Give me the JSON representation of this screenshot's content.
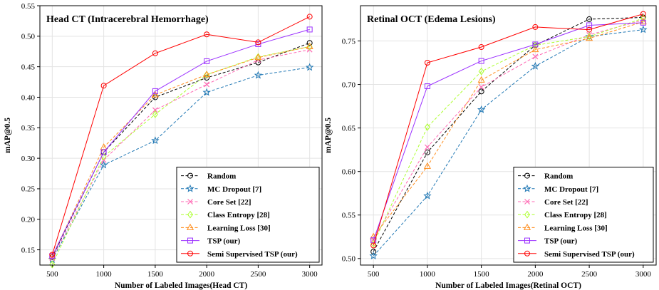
{
  "chart_data": [
    {
      "type": "line",
      "title": "Head CT (Intracerebral Hemorrhage)",
      "xlabel": "Number of Labeled Images(Head CT)",
      "ylabel": "mAP@0.5",
      "x": [
        500,
        1000,
        1500,
        2000,
        2500,
        3000
      ],
      "xlim": [
        380,
        3120
      ],
      "ylim": [
        0.125,
        0.55
      ],
      "yticks": [
        "0.15",
        "0.20",
        "0.25",
        "0.30",
        "0.35",
        "0.40",
        "0.45",
        "0.50",
        "0.55"
      ],
      "xticks": [
        "500",
        "1000",
        "1500",
        "2000",
        "2500",
        "3000"
      ],
      "grid": true,
      "legend_position": "bottom-right",
      "series": [
        {
          "name": "Random",
          "color": "#000000",
          "dash": "dashed",
          "marker": "circle",
          "values": [
            0.138,
            0.31,
            0.4,
            0.432,
            0.457,
            0.489
          ]
        },
        {
          "name": "MC Dropout [7]",
          "color": "#1f77b4",
          "dash": "dashed",
          "marker": "star",
          "values": [
            0.134,
            0.289,
            0.329,
            0.408,
            0.436,
            0.449
          ]
        },
        {
          "name": "Core Set [22]",
          "color": "#ff69b4",
          "dash": "dashed",
          "marker": "x",
          "values": [
            0.136,
            0.297,
            0.379,
            0.421,
            0.461,
            0.478
          ]
        },
        {
          "name": "Class Entropy [28]",
          "color": "#adff2f",
          "dash": "dashed",
          "marker": "diamond",
          "values": [
            0.126,
            0.303,
            0.372,
            0.437,
            0.466,
            0.483
          ]
        },
        {
          "name": "Learning Loss [30]",
          "color": "#ff8c1a",
          "dash": "dashed",
          "marker": "triangle",
          "values": [
            0.139,
            0.318,
            0.404,
            0.437,
            0.465,
            0.483
          ]
        },
        {
          "name": "TSP (our)",
          "color": "#9b30ff",
          "dash": "solid",
          "marker": "square",
          "values": [
            0.14,
            0.31,
            0.41,
            0.459,
            0.487,
            0.511
          ]
        },
        {
          "name": "Semi Supervised TSP (our)",
          "color": "#ff0000",
          "dash": "solid",
          "marker": "circle",
          "values": [
            0.142,
            0.419,
            0.472,
            0.503,
            0.49,
            0.532
          ]
        }
      ]
    },
    {
      "type": "line",
      "title": "Retinal OCT (Edema Lesions)",
      "xlabel": "Number of Labeled Images(Retinal OCT)",
      "ylabel": "mAP@0.5",
      "x": [
        500,
        1000,
        1500,
        2000,
        2500,
        3000
      ],
      "xlim": [
        380,
        3120
      ],
      "ylim": [
        0.4925,
        0.7905
      ],
      "yticks": [
        "0.50",
        "0.55",
        "0.60",
        "0.65",
        "0.70",
        "0.75"
      ],
      "xticks": [
        "500",
        "1000",
        "1500",
        "2000",
        "2500",
        "3000"
      ],
      "grid": true,
      "legend_position": "bottom-right",
      "series": [
        {
          "name": "Random",
          "color": "#000000",
          "dash": "dashed",
          "marker": "circle",
          "values": [
            0.508,
            0.622,
            0.692,
            0.745,
            0.775,
            0.777
          ]
        },
        {
          "name": "MC Dropout [7]",
          "color": "#1f77b4",
          "dash": "dashed",
          "marker": "star",
          "values": [
            0.503,
            0.572,
            0.671,
            0.721,
            0.755,
            0.763
          ]
        },
        {
          "name": "Core Set [22]",
          "color": "#ff69b4",
          "dash": "dashed",
          "marker": "x",
          "values": [
            0.522,
            0.628,
            0.697,
            0.732,
            0.757,
            0.774
          ]
        },
        {
          "name": "Class Entropy [28]",
          "color": "#adff2f",
          "dash": "dashed",
          "marker": "diamond",
          "values": [
            0.517,
            0.651,
            0.715,
            0.745,
            0.755,
            0.776
          ]
        },
        {
          "name": "Learning Loss [30]",
          "color": "#ff8c1a",
          "dash": "dashed",
          "marker": "triangle",
          "values": [
            0.525,
            0.606,
            0.705,
            0.74,
            0.753,
            0.772
          ]
        },
        {
          "name": "TSP (our)",
          "color": "#9b30ff",
          "dash": "solid",
          "marker": "square",
          "values": [
            0.521,
            0.698,
            0.727,
            0.746,
            0.768,
            0.771
          ]
        },
        {
          "name": "Semi Supervised TSP (our)",
          "color": "#ff0000",
          "dash": "solid",
          "marker": "circle",
          "values": [
            0.515,
            0.725,
            0.743,
            0.766,
            0.763,
            0.781
          ]
        }
      ]
    }
  ]
}
